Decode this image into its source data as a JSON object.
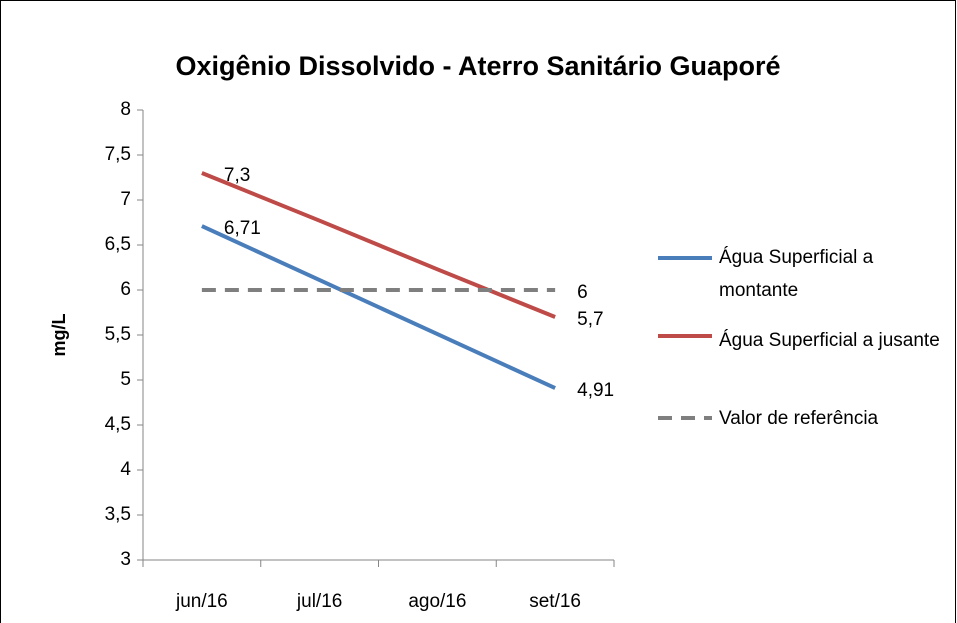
{
  "chart_data": {
    "type": "line",
    "title": "Oxigênio Dissolvido - Aterro Sanitário Guaporé",
    "y_label": "mg/L",
    "categories": [
      "jun/16",
      "jul/16",
      "ago/16",
      "set/16"
    ],
    "series": [
      {
        "name": "Água Superficial a montante",
        "color": "#4a7ebb",
        "values": [
          6.71,
          6.11,
          5.51,
          4.91
        ],
        "value_labels": [
          "6,71",
          null,
          null,
          "4,91"
        ]
      },
      {
        "name": "Água Superficial a jusante",
        "color": "#be4b48",
        "values": [
          7.3,
          6.77,
          6.23,
          5.7
        ],
        "value_labels": [
          "7,3",
          null,
          null,
          "5,7"
        ]
      },
      {
        "name": "Valor de referência",
        "color": "#7f7f7f",
        "dashed": true,
        "values": [
          6,
          6,
          6,
          6
        ],
        "value_labels": [
          null,
          null,
          null,
          "6"
        ]
      }
    ],
    "ylim": [
      3,
      8
    ],
    "yticks": [
      3,
      {
        "value": 3.5,
        "label": "3,5"
      },
      4,
      {
        "value": 4.5,
        "label": "4,5"
      },
      5,
      {
        "value": 5.5,
        "label": "5,5"
      },
      6,
      {
        "value": 6.5,
        "label": "6,5"
      },
      7,
      {
        "value": 7.5,
        "label": "7,5"
      },
      8
    ],
    "legend": "right"
  }
}
